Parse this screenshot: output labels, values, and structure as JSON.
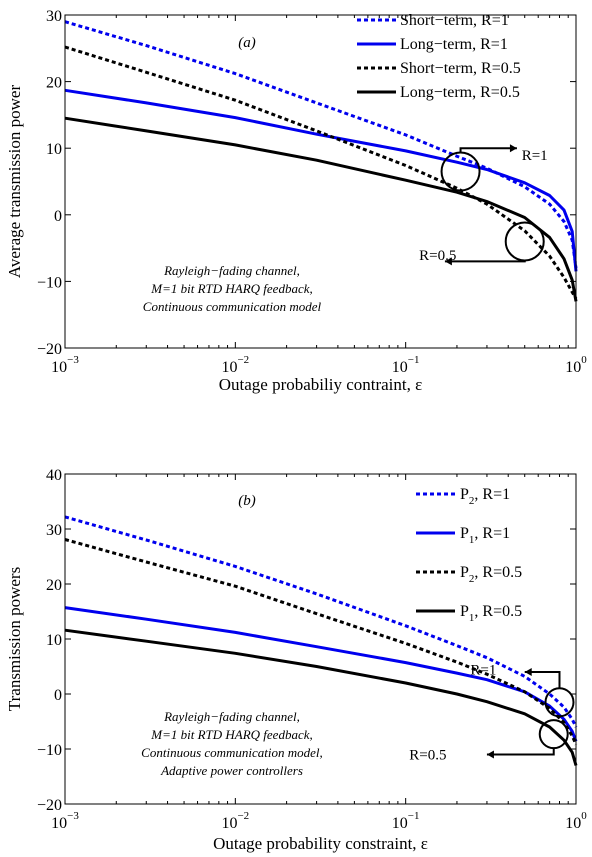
{
  "chart_data": [
    {
      "type": "line",
      "panel_label": "(a)",
      "xlabel": "Outage probabiliy contraint, ε",
      "ylabel": "Average transmission power",
      "xscale": "log",
      "xlim": [
        0.001,
        1
      ],
      "ylim": [
        -20,
        30
      ],
      "x_ticks": [
        0.001,
        0.01,
        0.1,
        1
      ],
      "x_tick_labels": [
        {
          "base": "10",
          "exp": "−3"
        },
        {
          "base": "10",
          "exp": "−2"
        },
        {
          "base": "10",
          "exp": "−1"
        },
        {
          "base": "10",
          "exp": "0"
        }
      ],
      "y_ticks": [
        -20,
        -10,
        0,
        10,
        20,
        30
      ],
      "y_tick_labels": [
        "−20",
        "−10",
        "0",
        "10",
        "20",
        "30"
      ],
      "legend_position": "top-right",
      "grid": false,
      "series": [
        {
          "name": "Short−term, R=1",
          "color": "#0000ee",
          "dash": "dotted",
          "x": [
            0.001,
            0.003,
            0.01,
            0.03,
            0.1,
            0.2,
            0.3,
            0.5,
            0.7,
            0.85,
            0.95,
            1.0
          ],
          "y": [
            29,
            25.4,
            21.2,
            16.8,
            12.0,
            8.8,
            7.0,
            4.2,
            1.6,
            -1.0,
            -3.8,
            -8.0
          ]
        },
        {
          "name": "Long−term, R=1",
          "color": "#0000ee",
          "dash": "solid",
          "x": [
            0.001,
            0.003,
            0.01,
            0.03,
            0.1,
            0.2,
            0.3,
            0.5,
            0.7,
            0.85,
            0.95,
            1.0
          ],
          "y": [
            18.7,
            16.8,
            14.6,
            12.1,
            9.6,
            7.9,
            6.8,
            4.8,
            2.9,
            0.7,
            -2.5,
            -8.5
          ]
        },
        {
          "name": "Short−term, R=0.5",
          "color": "#000000",
          "dash": "dotted",
          "x": [
            0.001,
            0.003,
            0.01,
            0.03,
            0.1,
            0.2,
            0.3,
            0.5,
            0.7,
            0.85,
            0.95,
            1.0
          ],
          "y": [
            25.2,
            21.4,
            17.2,
            12.6,
            7.4,
            4.0,
            1.6,
            -2.4,
            -6.2,
            -9.4,
            -11.6,
            -12.6
          ]
        },
        {
          "name": "Long−term, R=0.5",
          "color": "#000000",
          "dash": "solid",
          "x": [
            0.001,
            0.003,
            0.01,
            0.03,
            0.1,
            0.2,
            0.3,
            0.5,
            0.7,
            0.85,
            0.95,
            1.0
          ],
          "y": [
            14.5,
            12.6,
            10.5,
            8.2,
            5.2,
            3.4,
            2.0,
            -0.4,
            -3.4,
            -6.6,
            -9.8,
            -13.0
          ]
        }
      ],
      "annotations": {
        "note_lines": [
          "Rayleigh−fading channel,",
          "M=1 bit RTD HARQ feedback,",
          "Continuous communication model"
        ],
        "callouts": [
          {
            "label": "R=1",
            "circle_at": {
              "x": 0.21,
              "y": 6.5
            },
            "arrow_to": {
              "x": 0.45,
              "y": 10
            },
            "text_at": {
              "x": 0.48,
              "y": 9
            }
          },
          {
            "label": "R=0.5",
            "circle_at": {
              "x": 0.5,
              "y": -4
            },
            "arrow_to": {
              "x": 0.17,
              "y": -7
            },
            "text_at": {
              "x": 0.12,
              "y": -6
            }
          }
        ]
      }
    },
    {
      "type": "line",
      "panel_label": "(b)",
      "xlabel": "Outage probability constraint, ε",
      "ylabel": "Transmission powers",
      "xscale": "log",
      "xlim": [
        0.001,
        1
      ],
      "ylim": [
        -20,
        40
      ],
      "x_ticks": [
        0.001,
        0.01,
        0.1,
        1
      ],
      "x_tick_labels": [
        {
          "base": "10",
          "exp": "−3"
        },
        {
          "base": "10",
          "exp": "−2"
        },
        {
          "base": "10",
          "exp": "−1"
        },
        {
          "base": "10",
          "exp": "0"
        }
      ],
      "y_ticks": [
        -20,
        -10,
        0,
        10,
        20,
        30,
        40
      ],
      "y_tick_labels": [
        "−20",
        "−10",
        "0",
        "10",
        "20",
        "30",
        "40"
      ],
      "legend_position": "top-right",
      "grid": false,
      "series": [
        {
          "name": "P2, R=1",
          "name_main": "P",
          "name_sub": "2",
          "name_rest": ", R=1",
          "color": "#0000ee",
          "dash": "dotted",
          "x": [
            0.001,
            0.003,
            0.01,
            0.03,
            0.1,
            0.2,
            0.3,
            0.5,
            0.7,
            0.85,
            0.95,
            1.0
          ],
          "y": [
            32.2,
            28.0,
            23.2,
            18.2,
            12.4,
            8.8,
            6.6,
            3.2,
            0.0,
            -2.4,
            -4.6,
            -6.0
          ]
        },
        {
          "name": "P1, R=1",
          "name_main": "P",
          "name_sub": "1",
          "name_rest": ", R=1",
          "color": "#0000ee",
          "dash": "solid",
          "x": [
            0.001,
            0.003,
            0.01,
            0.03,
            0.1,
            0.2,
            0.3,
            0.5,
            0.7,
            0.85,
            0.95,
            1.0
          ],
          "y": [
            15.7,
            13.6,
            11.2,
            8.6,
            5.7,
            3.8,
            2.6,
            0.4,
            -2.2,
            -4.6,
            -6.8,
            -8.6
          ]
        },
        {
          "name": "P2, R=0.5",
          "name_main": "P",
          "name_sub": "2",
          "name_rest": ", R=0.5",
          "color": "#000000",
          "dash": "dotted",
          "x": [
            0.001,
            0.003,
            0.01,
            0.03,
            0.1,
            0.2,
            0.3,
            0.5,
            0.7,
            0.85,
            0.95,
            1.0
          ],
          "y": [
            28.1,
            24.0,
            19.6,
            14.6,
            9.2,
            5.8,
            3.6,
            0.4,
            -2.6,
            -5.2,
            -7.6,
            -9.2
          ]
        },
        {
          "name": "P1, R=0.5",
          "name_main": "P",
          "name_sub": "1",
          "name_rest": ", R=0.5",
          "color": "#000000",
          "dash": "solid",
          "x": [
            0.001,
            0.003,
            0.01,
            0.03,
            0.1,
            0.2,
            0.3,
            0.5,
            0.7,
            0.85,
            0.95,
            1.0
          ],
          "y": [
            11.6,
            9.6,
            7.4,
            5.0,
            2.0,
            0.0,
            -1.4,
            -3.6,
            -6.0,
            -8.4,
            -10.6,
            -13.0
          ]
        }
      ],
      "annotations": {
        "note_lines": [
          "Rayleigh−fading channel,",
          "M=1 bit RTD HARQ feedback,",
          "Continuous communication model,",
          "Adaptive power controllers"
        ],
        "callouts": [
          {
            "label": "R=1",
            "circle_at": {
              "x": 0.8,
              "y": -1.5
            },
            "arrow_to": {
              "x": 0.5,
              "y": 4
            },
            "text_at": {
              "x": 0.24,
              "y": 4.5
            }
          },
          {
            "label": "R=0.5",
            "circle_at": {
              "x": 0.74,
              "y": -7.3
            },
            "arrow_to": {
              "x": 0.3,
              "y": -11
            },
            "text_at": {
              "x": 0.105,
              "y": -11
            }
          }
        ]
      }
    }
  ]
}
